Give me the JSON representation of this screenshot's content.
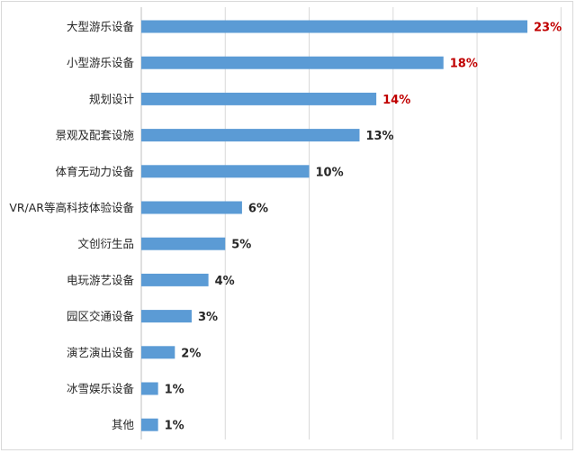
{
  "chart_data": {
    "type": "bar",
    "orientation": "horizontal",
    "title": "",
    "xlabel": "",
    "ylabel": "",
    "xlim": [
      0,
      25
    ],
    "grid": true,
    "legend": "none",
    "bar_color": "#5b9bd5",
    "highlight_label_color": "#c00000",
    "default_label_color": "#262626",
    "categories": [
      "大型游乐设备",
      "小型游乐设备",
      "规划设计",
      "景观及配套设施",
      "体育无动力设备",
      "VR/AR等高科技体验设备",
      "文创衍生品",
      "电玩游艺设备",
      "园区交通设备",
      "演艺演出设备",
      "冰雪娱乐设备",
      "其他"
    ],
    "values": [
      23,
      18,
      14,
      13,
      10,
      6,
      5,
      4,
      3,
      2,
      1,
      1
    ],
    "value_labels": [
      "23%",
      "18%",
      "14%",
      "13%",
      "10%",
      "6%",
      "5%",
      "4%",
      "3%",
      "2%",
      "1%",
      "1%"
    ],
    "highlighted": [
      true,
      true,
      true,
      false,
      false,
      false,
      false,
      false,
      false,
      false,
      false,
      false
    ]
  }
}
